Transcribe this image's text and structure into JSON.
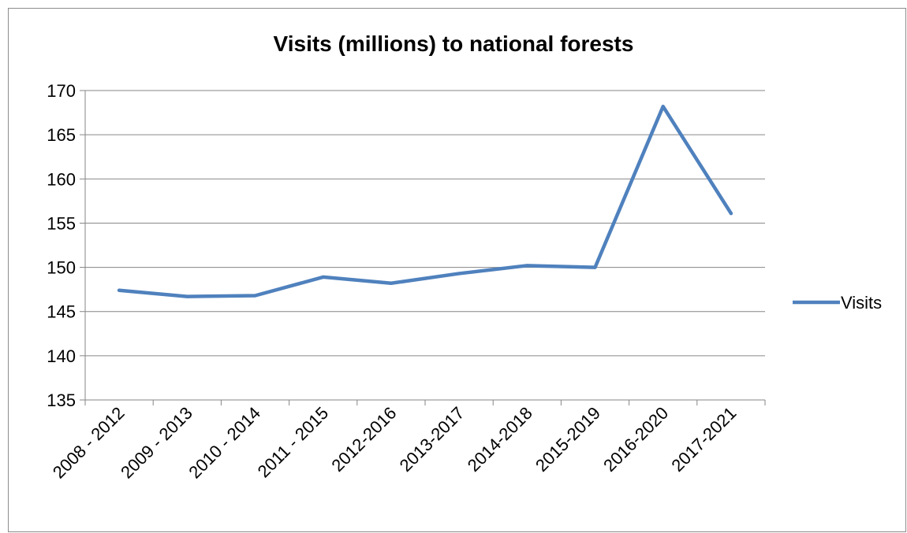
{
  "chart_data": {
    "type": "line",
    "title": "Visits (millions) to national forests",
    "categories": [
      "2008 - 2012",
      "2009 - 2013",
      "2010 - 2014",
      "2011 - 2015",
      "2012-2016",
      "2013-2017",
      "2014-2018",
      "2015-2019",
      "2016-2020",
      "2017-2021"
    ],
    "series": [
      {
        "name": "Visits",
        "values": [
          147.4,
          146.7,
          146.8,
          148.9,
          148.2,
          149.3,
          150.2,
          150.0,
          168.2,
          156.1
        ]
      }
    ],
    "ylim": [
      135,
      170
    ],
    "yticks": [
      135,
      140,
      145,
      150,
      155,
      160,
      165,
      170
    ],
    "xlabel": "",
    "ylabel": "",
    "grid": true,
    "legend_position": "right",
    "series_color": "#4f81bd"
  }
}
